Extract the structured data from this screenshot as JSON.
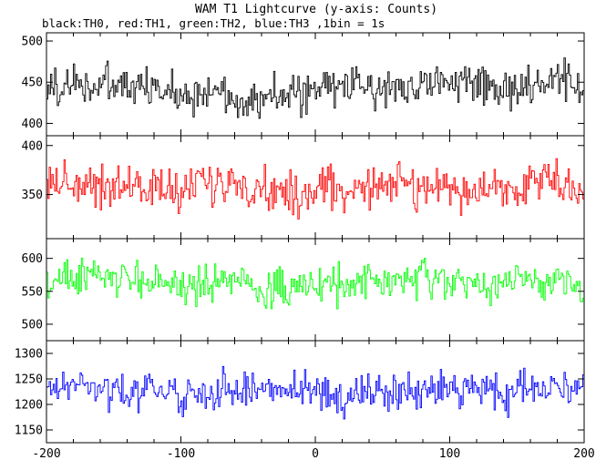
{
  "chart_data": {
    "type": "line",
    "title": "WAM T1 Lightcurve (y-axis: Counts)",
    "subtitle": "black:TH0, red:TH1, green:TH2, blue:TH3 ,1bin = 1s",
    "xlim": [
      -200,
      200
    ],
    "x_ticks": [
      -200,
      -100,
      0,
      100,
      200
    ],
    "bin_seconds": 1,
    "grid": false,
    "legend": "none",
    "panels": [
      {
        "series": "TH0",
        "color": "#000000",
        "ylim": [
          385,
          510
        ],
        "y_ticks": [
          400,
          450,
          500
        ],
        "mean": 440,
        "amplitude": 22,
        "x_samples": [
          -200,
          -180,
          -160,
          -140,
          -120,
          -100,
          -80,
          -60,
          -40,
          -20,
          0,
          20,
          40,
          60,
          80,
          100,
          120,
          140,
          160,
          180,
          200
        ],
        "y_samples": [
          442,
          448,
          446,
          445,
          440,
          438,
          436,
          433,
          430,
          433,
          440,
          446,
          444,
          445,
          448,
          452,
          446,
          441,
          444,
          447,
          448
        ]
      },
      {
        "series": "TH1",
        "color": "#ff0000",
        "ylim": [
          305,
          410
        ],
        "y_ticks": [
          350,
          400
        ],
        "mean": 358,
        "amplitude": 19,
        "x_samples": [
          -200,
          -180,
          -160,
          -140,
          -120,
          -100,
          -80,
          -60,
          -40,
          -20,
          0,
          20,
          40,
          60,
          80,
          100,
          120,
          140,
          160,
          180,
          200
        ],
        "y_samples": [
          364,
          362,
          360,
          359,
          356,
          355,
          358,
          362,
          356,
          351,
          352,
          355,
          360,
          362,
          357,
          354,
          353,
          355,
          365,
          362,
          358
        ]
      },
      {
        "series": "TH2",
        "color": "#00ff00",
        "ylim": [
          475,
          630
        ],
        "y_ticks": [
          500,
          550,
          600
        ],
        "mean": 562,
        "amplitude": 24,
        "x_samples": [
          -200,
          -180,
          -160,
          -140,
          -120,
          -100,
          -80,
          -60,
          -40,
          -20,
          0,
          20,
          40,
          60,
          80,
          100,
          120,
          140,
          160,
          180,
          200
        ],
        "y_samples": [
          562,
          570,
          574,
          566,
          568,
          560,
          558,
          570,
          552,
          556,
          558,
          560,
          566,
          564,
          568,
          562,
          558,
          560,
          570,
          564,
          562
        ]
      },
      {
        "series": "TH3",
        "color": "#0000ff",
        "ylim": [
          1125,
          1325
        ],
        "y_ticks": [
          1150,
          1200,
          1250,
          1300
        ],
        "mean": 1225,
        "amplitude": 30,
        "x_samples": [
          -200,
          -180,
          -160,
          -140,
          -120,
          -100,
          -80,
          -60,
          -40,
          -20,
          0,
          20,
          40,
          60,
          80,
          100,
          120,
          140,
          160,
          180,
          200
        ],
        "y_samples": [
          1228,
          1236,
          1234,
          1225,
          1230,
          1220,
          1215,
          1240,
          1222,
          1230,
          1218,
          1214,
          1222,
          1226,
          1228,
          1232,
          1230,
          1220,
          1238,
          1234,
          1226
        ]
      }
    ]
  }
}
